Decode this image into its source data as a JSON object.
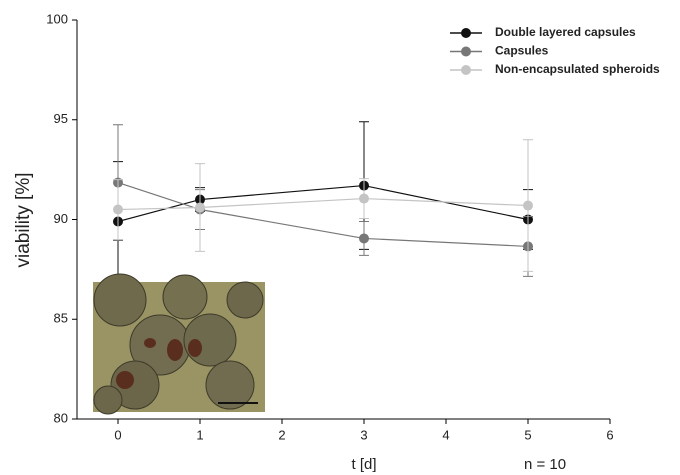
{
  "chart_data": {
    "type": "line",
    "x": [
      0,
      1,
      3,
      5
    ],
    "series": [
      {
        "name": "Double layered capsules",
        "color": "#111111",
        "values": [
          89.9,
          91.0,
          91.7,
          90.0
        ],
        "errors": [
          3.0,
          0.6,
          3.2,
          1.5
        ]
      },
      {
        "name": "Capsules",
        "color": "#777777",
        "values": [
          91.85,
          90.5,
          89.05,
          88.65
        ],
        "errors": [
          2.9,
          1.0,
          0.85,
          1.5
        ]
      },
      {
        "name": "Non-encapsulated spheroids",
        "color": "#c4c4c4",
        "values": [
          90.5,
          90.6,
          91.05,
          90.7
        ],
        "errors": [
          1.5,
          2.2,
          1.0,
          3.3
        ]
      }
    ],
    "xlabel": "t [d]",
    "ylabel": "viability [%]",
    "annotation": "n = 10",
    "xlim": [
      -0.5,
      6
    ],
    "ylim": [
      80,
      100
    ],
    "xticks": [
      0,
      1,
      2,
      3,
      4,
      5,
      6
    ],
    "yticks": [
      80,
      85,
      90,
      95,
      100
    ],
    "grid": false,
    "legend": "upper right"
  }
}
